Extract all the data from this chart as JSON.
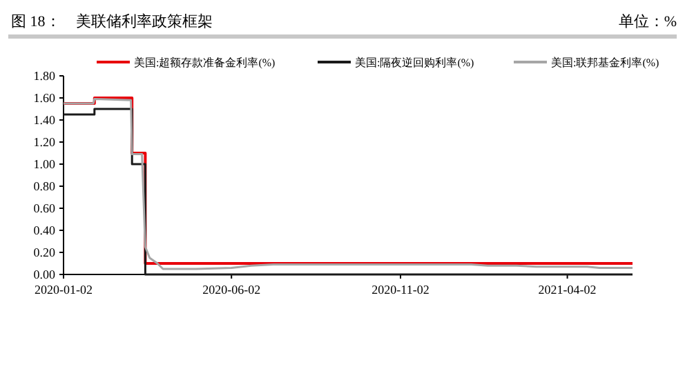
{
  "chart_data": {
    "type": "line",
    "title": "图 18：　美联储利率政策框架",
    "subtitle": "单位：%",
    "xlim": [
      "2020-01-02",
      "2021-05-31"
    ],
    "xticks": [
      "2020-01-02",
      "2020-06-02",
      "2020-11-02",
      "2021-04-02"
    ],
    "ylim": [
      0,
      1.8
    ],
    "yticks": [
      {
        "value": 0,
        "label": "0.00"
      },
      {
        "value": 0.2,
        "label": "0.20"
      },
      {
        "value": 0.4,
        "label": "0.40"
      },
      {
        "value": 0.6,
        "label": "0.60"
      },
      {
        "value": 0.8,
        "label": "0.80"
      },
      {
        "value": 1,
        "label": "1.00"
      },
      {
        "value": 1.2,
        "label": "1.20"
      },
      {
        "value": 1.4,
        "label": "1.40"
      },
      {
        "value": 1.6,
        "label": "1.60"
      },
      {
        "value": 1.8,
        "label": "1.80"
      }
    ],
    "legend": "top",
    "grid": false,
    "marker": "none",
    "line_style": "solid",
    "series": [
      {
        "name": "美国:超额存款准备金利率(%)",
        "type": "step",
        "color": "#e8000b",
        "x": [
          "2020-01-02",
          "2020-01-30",
          "2020-03-04",
          "2020-03-16",
          "2021-05-31"
        ],
        "values": [
          1.55,
          1.6,
          1.1,
          0.1,
          0.1
        ]
      },
      {
        "name": "美国:隔夜逆回购利率(%)",
        "type": "step",
        "color": "#1a1a1a",
        "x": [
          "2020-01-02",
          "2020-01-30",
          "2020-03-04",
          "2020-03-16",
          "2021-05-31"
        ],
        "values": [
          1.45,
          1.5,
          1.0,
          0.0,
          0.0
        ]
      },
      {
        "name": "美国:联邦基金利率(%)",
        "type": "line",
        "color": "#a6a6a6",
        "x": [
          "2020-01-02",
          "2020-01-29",
          "2020-01-30",
          "2020-03-03",
          "2020-03-04",
          "2020-03-13",
          "2020-03-16",
          "2020-03-20",
          "2020-03-27",
          "2020-04-01",
          "2020-05-01",
          "2020-06-02",
          "2020-06-20",
          "2020-07-10",
          "2020-09-01",
          "2020-11-02",
          "2020-12-15",
          "2021-01-05",
          "2021-01-20",
          "2021-02-15",
          "2021-03-05",
          "2021-04-02",
          "2021-04-20",
          "2021-05-01",
          "2021-05-31"
        ],
        "values": [
          1.55,
          1.55,
          1.59,
          1.58,
          1.09,
          1.09,
          0.25,
          0.15,
          0.1,
          0.05,
          0.05,
          0.06,
          0.08,
          0.09,
          0.09,
          0.09,
          0.09,
          0.09,
          0.08,
          0.08,
          0.07,
          0.07,
          0.07,
          0.06,
          0.06
        ]
      }
    ]
  }
}
